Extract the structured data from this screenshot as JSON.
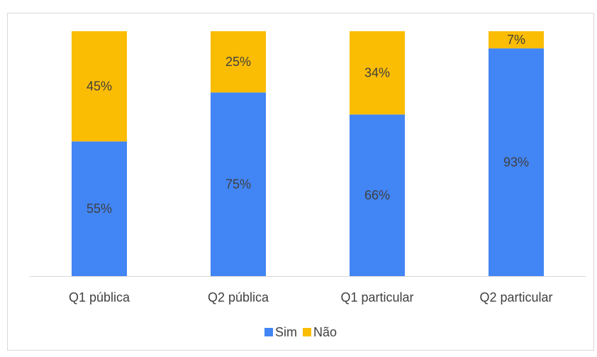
{
  "chart_data": {
    "type": "stacked_bar",
    "categories": [
      "Q1 pública",
      "Q2 pública",
      "Q1 particular",
      "Q2 particular"
    ],
    "series": [
      {
        "name": "Sim",
        "color": "#4285f4",
        "values": [
          55,
          75,
          66,
          93
        ],
        "value_labels": [
          "55%",
          "75%",
          "66%",
          "93%"
        ]
      },
      {
        "name": "Não",
        "color": "#fbbc04",
        "values": [
          45,
          25,
          34,
          7
        ],
        "value_labels": [
          "45%",
          "25%",
          "34%",
          "7%"
        ]
      }
    ],
    "legend": "bottom"
  }
}
